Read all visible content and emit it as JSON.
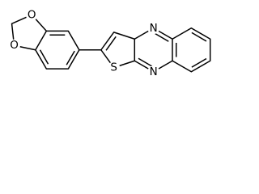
{
  "atoms": [
    {
      "label": "O"
    },
    {
      "label": "O"
    },
    {
      "label": "S"
    },
    {
      "label": "N"
    },
    {
      "label": "N"
    }
  ]
}
